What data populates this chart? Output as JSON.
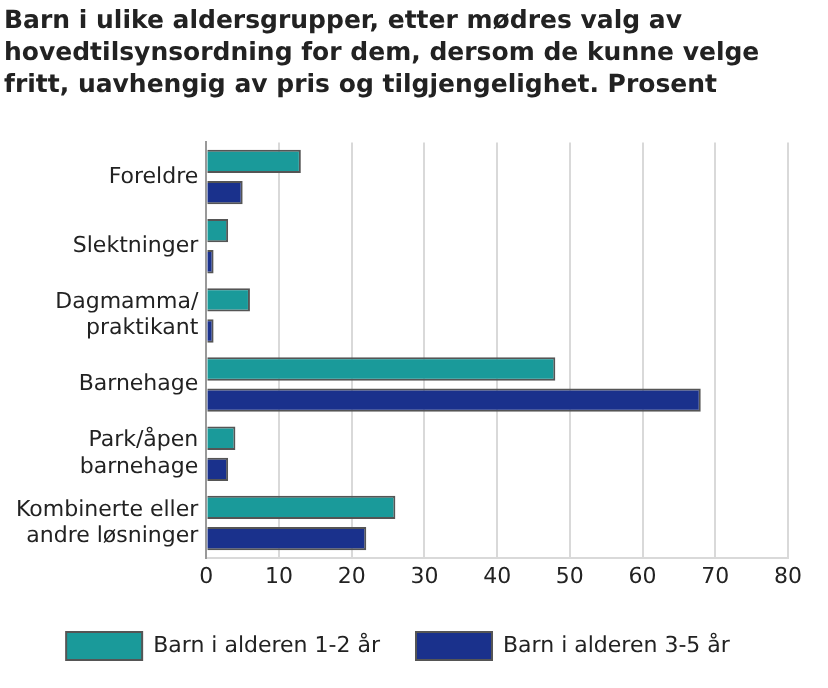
{
  "chart_data": {
    "type": "bar",
    "orientation": "horizontal",
    "title": "Barn i ulike aldersgrupper, etter mødres valg av hovedtilsynsordning for dem, dersom de kunne velge fritt, uavhengig av pris og tilgjengelighet. Prosent",
    "categories": [
      "Foreldre",
      "Slektninger",
      "Dagmamma/ praktikant",
      "Barnehage",
      "Park/åpen barnehage",
      "Kombinerte eller andre løsninger"
    ],
    "series": [
      {
        "name": "Barn i alderen 1-2 år",
        "color": "#1a9a9a",
        "values": [
          13,
          3,
          6,
          48,
          4,
          26
        ]
      },
      {
        "name": "Barn i alderen 3-5 år",
        "color": "#1a318c",
        "values": [
          5,
          1,
          1,
          68,
          3,
          22
        ]
      }
    ],
    "xlim": [
      0,
      80
    ],
    "xticks": [
      0,
      10,
      20,
      30,
      40,
      50,
      60,
      70,
      80
    ],
    "grid": "x",
    "legend": "bottom"
  }
}
